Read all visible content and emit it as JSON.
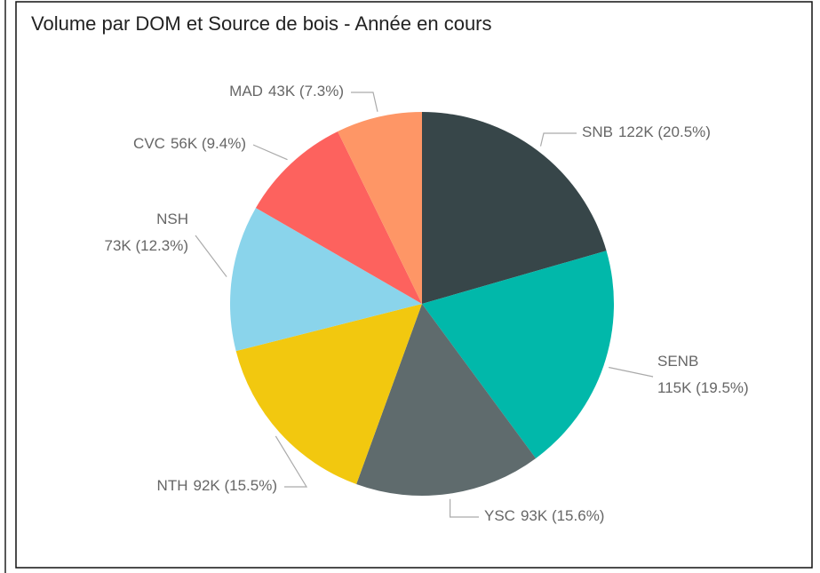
{
  "chart_data": {
    "type": "pie",
    "title": "Volume par DOM et Source de bois - Année en cours",
    "categories": [
      "SNB",
      "SENB",
      "YSC",
      "NTH",
      "NSH",
      "CVC",
      "MAD"
    ],
    "values": [
      122000,
      115000,
      93000,
      92000,
      73000,
      56000,
      43000
    ],
    "value_labels": [
      "122K (20.5%)",
      "115K (19.5%)",
      "93K (15.6%)",
      "92K (15.5%)",
      "73K (12.3%)",
      "56K (9.4%)",
      "43K (7.3%)"
    ],
    "colors": [
      "#374649",
      "#01B8AA",
      "#5F6B6D",
      "#F2C80F",
      "#8AD4EB",
      "#FD625E",
      "#FE9666"
    ]
  }
}
